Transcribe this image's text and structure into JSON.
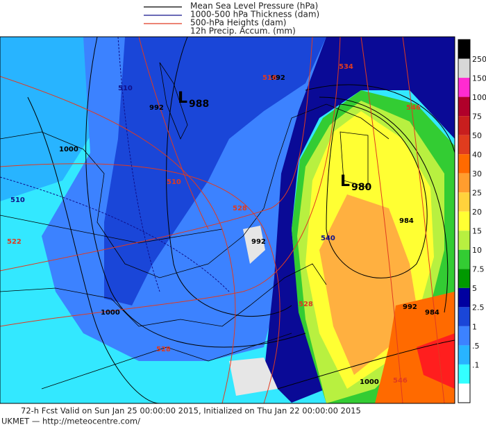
{
  "legend": [
    "Mean Sea Level Pressure (hPa)",
    "1000-500 hPa Thickness (dam)",
    "500-hPa Heights (dam)",
    "12h Precip. Accum. (mm)"
  ],
  "colorbar": [
    "250",
    "150",
    "100",
    "75",
    "50",
    "40",
    "30",
    "25",
    "20",
    "15",
    "10",
    "7.5",
    "5",
    "2.5",
    "1",
    ".5",
    ".1"
  ],
  "lows": [
    {
      "symbol": "L",
      "value": "988"
    },
    {
      "symbol": "L",
      "value": "980"
    }
  ],
  "isobar_labels": [
    "992",
    "1000",
    "992",
    "992",
    "984",
    "992",
    "1000",
    "1000",
    "984"
  ],
  "height_labels": [
    "510",
    "516",
    "522",
    "528",
    "534",
    "546",
    "528",
    "528",
    "546"
  ],
  "thickness_labels": [
    "510",
    "510",
    "540"
  ],
  "footer": [
    "72-h Fcst Valid on Sun Jan 25 00:00:00 2015, Initialized on Thu Jan 22 00:00:00 2015",
    "UKMET  — http://meteocentre.com/"
  ]
}
